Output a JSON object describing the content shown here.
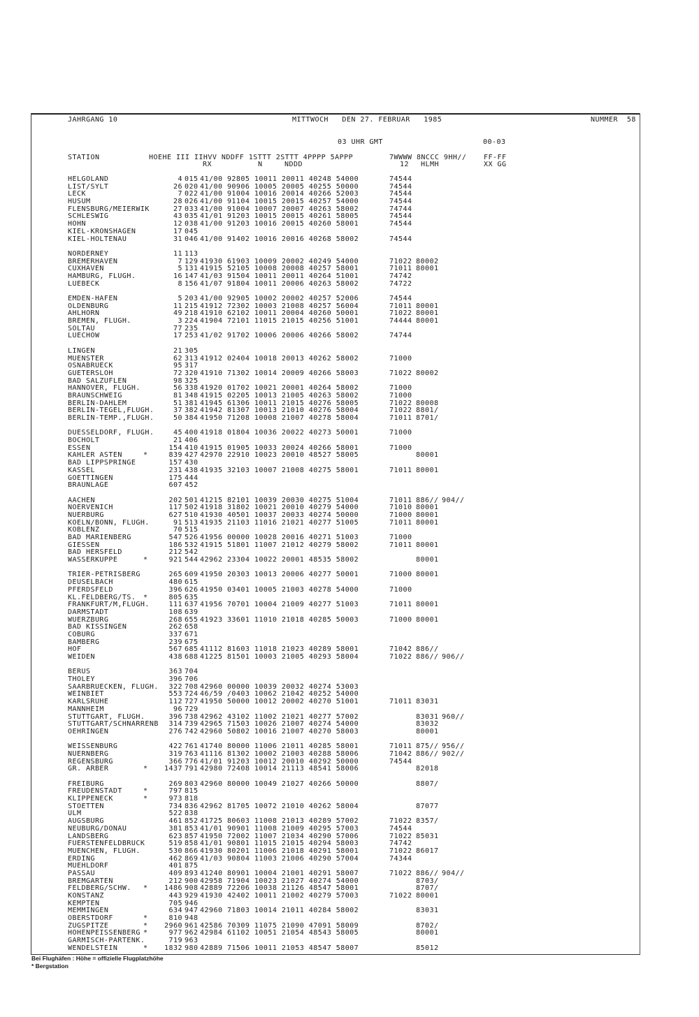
{
  "header": {
    "volume": "JAHRGANG 10",
    "date": "MITTWOCH   DEN 27. FEBRUAR   1985",
    "number": "NUMMER  58",
    "time": "03 UHR GMT",
    "period": "00-03"
  },
  "columns": {
    "line1": "HOEHE III IIHVV NDDFF 1STTT 2STTT 4PPPP 5APPP",
    "line1b": "7WWWW 8NCCC 9HH//",
    "station": "STATION",
    "ff": "FF-FF",
    "rx": "RX",
    "n": "N",
    "nddd": "NDDD",
    "w12": "12",
    "hlmh": "HLMH",
    "xxgg": "XX GG"
  },
  "table": {
    "groups": [
      {
        "rows": [
          [
            "HELGOLAND",
            "",
            "4",
            "015",
            "41/00 92805 10011 20011 40248 54000",
            "74544",
            "",
            ""
          ],
          [
            "LIST/SYLT",
            "",
            "26",
            "020",
            "41/00 90906 10005 20005 40255 50000",
            "74544",
            "",
            ""
          ],
          [
            "LECK",
            "",
            "7",
            "022",
            "41/00 91004 10016 20014 40266 52003",
            "74544",
            "",
            ""
          ],
          [
            "HUSUM",
            "",
            "28",
            "026",
            "41/00 91104 10015 20015 40257 54000",
            "74544",
            "",
            ""
          ],
          [
            "FLENSBURG/MEIERWIK",
            "",
            "27",
            "033",
            "41/00 91004 10007 20007 40263 58002",
            "74744",
            "",
            ""
          ],
          [
            "SCHLESWIG",
            "",
            "43",
            "035",
            "41/01 91203 10015 20015 40261 58005",
            "74544",
            "",
            ""
          ],
          [
            "HOHN",
            "",
            "12",
            "038",
            "41/00 91203 10016 20015 40260 58001",
            "74544",
            "",
            ""
          ],
          [
            "KIEL-KRONSHAGEN",
            "",
            "17",
            "045",
            "",
            "",
            "",
            ""
          ],
          [
            "KIEL-HOLTENAU",
            "",
            "31",
            "046",
            "41/00 91402 10016 20016 40268 58002",
            "74544",
            "",
            ""
          ]
        ]
      },
      {
        "rows": [
          [
            "NORDERNEY",
            "",
            "11",
            "113",
            "",
            "",
            "",
            ""
          ],
          [
            "BREMERHAVEN",
            "",
            "7",
            "129",
            "41930 61903 10009 20002 40249 54000",
            "71022",
            "80002",
            ""
          ],
          [
            "CUXHAVEN",
            "",
            "5",
            "131",
            "41915 52105 10008 20008 40257 58001",
            "71011",
            "80001",
            ""
          ],
          [
            "HAMBURG, FLUGH.",
            "",
            "16",
            "147",
            "41/03 91504 10011 20011 40264 51001",
            "74742",
            "",
            ""
          ],
          [
            "LUEBECK",
            "",
            "8",
            "156",
            "41/07 91804 10011 20006 40263 58002",
            "74722",
            "",
            ""
          ]
        ]
      },
      {
        "rows": [
          [
            "EMDEN-HAFEN",
            "",
            "5",
            "203",
            "41/00 92905 10002 20002 40257 52006",
            "74544",
            "",
            ""
          ],
          [
            "OLDENBURG",
            "",
            "11",
            "215",
            "41912 72302 10003 21008 40257 56004",
            "71011",
            "80001",
            ""
          ],
          [
            "AHLHORN",
            "",
            "49",
            "218",
            "41910 62102 10011 20004 40260 50001",
            "71022",
            "80001",
            ""
          ],
          [
            "BREMEN, FLUGH.",
            "",
            "3",
            "224",
            "41904 72101 11015 21015 40256 51001",
            "74444",
            "80001",
            ""
          ],
          [
            "SOLTAU",
            "",
            "77",
            "235",
            "",
            "",
            "",
            ""
          ],
          [
            "LUECHOW",
            "",
            "17",
            "253",
            "41/02 91702 10006 20006 40266 58002",
            "74744",
            "",
            ""
          ]
        ]
      },
      {
        "rows": [
          [
            "LINGEN",
            "",
            "21",
            "305",
            "",
            "",
            "",
            ""
          ],
          [
            "MUENSTER",
            "",
            "62",
            "313",
            "41912 02404 10018 20013 40262 58002",
            "71000",
            "",
            ""
          ],
          [
            "OSNABRUECK",
            "",
            "95",
            "317",
            "",
            "",
            "",
            ""
          ],
          [
            "GUETERSLOH",
            "",
            "72",
            "320",
            "41910 71302 10014 20009 40266 58003",
            "71022",
            "80002",
            ""
          ],
          [
            "BAD SALZUFLEN",
            "",
            "98",
            "325",
            "",
            "",
            "",
            ""
          ],
          [
            "HANNOVER, FLUGH.",
            "",
            "56",
            "338",
            "41920 01702 10021 20001 40264 58002",
            "71000",
            "",
            ""
          ],
          [
            "BRAUNSCHWEIG",
            "",
            "81",
            "348",
            "41915 02205 10013 21005 40263 58002",
            "71000",
            "",
            ""
          ],
          [
            "BERLIN-DAHLEM",
            "",
            "51",
            "381",
            "41945 61306 10011 21015 40276 58005",
            "71022",
            "80008",
            ""
          ],
          [
            "BERLIN-TEGEL,FLUGH.",
            "",
            "37",
            "382",
            "41942 81307 10013 21010 40276 58004",
            "71022",
            "8801/",
            ""
          ],
          [
            "BERLIN-TEMP.,FLUGH.",
            "",
            "50",
            "384",
            "41950 71208 10008 21007 40278 58004",
            "71011",
            "8701/",
            ""
          ]
        ]
      },
      {
        "rows": [
          [
            "DUESSELDORF, FLUGH.",
            "",
            "45",
            "400",
            "41918 01804 10036 20022 40273 50001",
            "71000",
            "",
            ""
          ],
          [
            "BOCHOLT",
            "",
            "21",
            "406",
            "",
            "",
            "",
            ""
          ],
          [
            "ESSEN",
            "",
            "154",
            "410",
            "41915 01905 10033 20024 40266 58001",
            "71000",
            "",
            ""
          ],
          [
            "KAHLER ASTEN",
            "*",
            "839",
            "427",
            "42970 22910 10023 20010 48527 58005",
            "",
            "80001",
            ""
          ],
          [
            "BAD LIPPSPRINGE",
            "",
            "157",
            "430",
            "",
            "",
            "",
            ""
          ],
          [
            "KASSEL",
            "",
            "231",
            "438",
            "41935 32103 10007 21008 40275 58001",
            "71011",
            "80001",
            ""
          ],
          [
            "GOETTINGEN",
            "",
            "175",
            "444",
            "",
            "",
            "",
            ""
          ],
          [
            "BRAUNLAGE",
            "",
            "607",
            "452",
            "",
            "",
            "",
            ""
          ]
        ]
      },
      {
        "rows": [
          [
            "AACHEN",
            "",
            "202",
            "501",
            "41215 82101 10039 20030 40275 51004",
            "71011",
            "886//",
            "904//"
          ],
          [
            "NOERVENICH",
            "",
            "117",
            "502",
            "41918 31802 10021 20010 40279 54000",
            "71010",
            "80001",
            ""
          ],
          [
            "NUERBURG",
            "",
            "627",
            "510",
            "41930 40501 10037 20033 40274 50000",
            "71000",
            "80001",
            ""
          ],
          [
            "KOELN/BONN, FLUGH.",
            "",
            "91",
            "513",
            "41935 21103 11016 21021 40277 51005",
            "71011",
            "80001",
            ""
          ],
          [
            "KOBLENZ",
            "",
            "70",
            "515",
            "",
            "",
            "",
            ""
          ],
          [
            "BAD MARIENBERG",
            "",
            "547",
            "526",
            "41956 00000 10028 20016 40271 51003",
            "71000",
            "",
            ""
          ],
          [
            "GIESSEN",
            "",
            "186",
            "532",
            "41915 51801 11007 21012 40279 58002",
            "71011",
            "80001",
            ""
          ],
          [
            "BAD HERSFELD",
            "",
            "212",
            "542",
            "",
            "",
            "",
            ""
          ],
          [
            "WASSERKUPPE",
            "*",
            "921",
            "544",
            "42962 23304 10022 20001 48535 58002",
            "",
            "80001",
            ""
          ]
        ]
      },
      {
        "rows": [
          [
            "TRIER-PETRISBERG",
            "",
            "265",
            "609",
            "41950 20303 10013 20006 40277 50001",
            "71000",
            "80001",
            ""
          ],
          [
            "DEUSELBACH",
            "",
            "480",
            "615",
            "",
            "",
            "",
            ""
          ],
          [
            "PFERDSFELD",
            "",
            "396",
            "626",
            "41950 03401 10005 21003 40278 54000",
            "71000",
            "",
            ""
          ],
          [
            "KL.FELDBERG/TS.",
            "*",
            "805",
            "635",
            "",
            "",
            "",
            ""
          ],
          [
            "FRANKFURT/M,FLUGH.",
            "",
            "111",
            "637",
            "41956 70701 10004 21009 40277 51003",
            "71011",
            "80001",
            ""
          ],
          [
            "DARMSTADT",
            "",
            "108",
            "639",
            "",
            "",
            "",
            ""
          ],
          [
            "WUERZBURG",
            "",
            "268",
            "655",
            "41923 33601 11010 21018 40285 50003",
            "71000",
            "80001",
            ""
          ],
          [
            "BAD KISSINGEN",
            "",
            "262",
            "658",
            "",
            "",
            "",
            ""
          ],
          [
            "COBURG",
            "",
            "337",
            "671",
            "",
            "",
            "",
            ""
          ],
          [
            "BAMBERG",
            "",
            "239",
            "675",
            "",
            "",
            "",
            ""
          ],
          [
            "HOF",
            "",
            "567",
            "685",
            "41112 81603 11018 21023 40289 58001",
            "71042",
            "886//",
            ""
          ],
          [
            "WEIDEN",
            "",
            "438",
            "688",
            "41225 81501 10003 21005 40293 58004",
            "71022",
            "886//",
            "906//"
          ]
        ]
      },
      {
        "rows": [
          [
            "BERUS",
            "",
            "363",
            "704",
            "",
            "",
            "",
            ""
          ],
          [
            "THOLEY",
            "",
            "396",
            "706",
            "",
            "",
            "",
            ""
          ],
          [
            "SAARBRUECKEN, FLUGH.",
            "",
            "322",
            "708",
            "42960 00000 10039 20032 40274 53003",
            "",
            "",
            ""
          ],
          [
            "WEINBIET",
            "",
            "553",
            "724",
            "46/59 /0403 10062 21042 40252 54000",
            "",
            "",
            ""
          ],
          [
            "KARLSRUHE",
            "",
            "112",
            "727",
            "41950 50000 10012 20002 40270 51001",
            "71011",
            "83031",
            ""
          ],
          [
            "MANNHEIM",
            "",
            "96",
            "729",
            "",
            "",
            "",
            ""
          ],
          [
            "STUTTGART, FLUGH.",
            "",
            "396",
            "738",
            "42962 43102 11002 21021 40277 57002",
            "",
            "83031",
            "960//"
          ],
          [
            "STUTTGART/SCHNARRENB",
            "",
            "314",
            "739",
            "42965 71503 10026 21007 40274 54000",
            "",
            "83032",
            ""
          ],
          [
            "OEHRINGEN",
            "",
            "276",
            "742",
            "42960 50802 10016 21007 40270 58003",
            "",
            "80001",
            ""
          ]
        ]
      },
      {
        "rows": [
          [
            "WEISSENBURG",
            "",
            "422",
            "761",
            "41740 80000 11006 21011 40285 58001",
            "71011",
            "875//",
            "956//"
          ],
          [
            "NUERNBERG",
            "",
            "319",
            "763",
            "41116 81302 10002 21003 40288 58006",
            "71042",
            "886//",
            "902//"
          ],
          [
            "REGENSBURG",
            "",
            "366",
            "776",
            "41/01 91203 10012 20010 40292 50000",
            "74544",
            "",
            ""
          ],
          [
            "GR. ARBER",
            "*",
            "1437",
            "791",
            "42980 72408 10014 21113 48541 58006",
            "",
            "82018",
            ""
          ]
        ]
      },
      {
        "rows": [
          [
            "FREIBURG",
            "",
            "269",
            "803",
            "42960 80000 10049 21027 40266 50000",
            "",
            "8807/",
            ""
          ],
          [
            "FREUDENSTADT",
            "*",
            "797",
            "815",
            "",
            "",
            "",
            ""
          ],
          [
            "KLIPPENECK",
            "*",
            "973",
            "818",
            "",
            "",
            "",
            ""
          ],
          [
            "STOETTEN",
            "",
            "734",
            "836",
            "42962 81705 10072 21010 40262 58004",
            "",
            "87077",
            ""
          ],
          [
            "ULM",
            "",
            "522",
            "838",
            "",
            "",
            "",
            ""
          ],
          [
            "AUGSBURG",
            "",
            "461",
            "852",
            "41725 80603 11008 21013 40289 57002",
            "71022",
            "8357/",
            ""
          ],
          [
            "NEUBURG/DONAU",
            "",
            "381",
            "853",
            "41/01 90901 11008 21009 40295 57003",
            "74544",
            "",
            ""
          ],
          [
            "LANDSBERG",
            "",
            "623",
            "857",
            "41950 72002 11007 21034 40290 57006",
            "71022",
            "85031",
            ""
          ],
          [
            "FUERSTENFELDBRUCK",
            "",
            "519",
            "858",
            "41/01 90801 11015 21015 40294 58003",
            "74742",
            "",
            ""
          ],
          [
            "MUENCHEN, FLUGH.",
            "",
            "530",
            "866",
            "41930 80201 11006 21018 40291 58001",
            "71022",
            "86017",
            ""
          ],
          [
            "ERDING",
            "",
            "462",
            "869",
            "41/03 90804 11003 21006 40290 57004",
            "74344",
            "",
            ""
          ],
          [
            "MUEHLDORF",
            "",
            "401",
            "875",
            "",
            "",
            "",
            ""
          ],
          [
            "PASSAU",
            "",
            "409",
            "893",
            "41240 80901 10004 21001 40291 58007",
            "71022",
            "886//",
            "904//"
          ],
          [
            "BREMGARTEN",
            "",
            "212",
            "900",
            "42958 71904 10023 21027 40274 54000",
            "",
            "8703/",
            ""
          ],
          [
            "FELDBERG/SCHW.",
            "*",
            "1486",
            "908",
            "42889 72206 10038 21126 48547 58001",
            "",
            "8707/",
            ""
          ],
          [
            "KONSTANZ",
            "",
            "443",
            "929",
            "41930 42402 10011 21002 40279 57003",
            "71022",
            "80001",
            ""
          ],
          [
            "KEMPTEN",
            "",
            "705",
            "946",
            "",
            "",
            "",
            ""
          ],
          [
            "MEMMINGEN",
            "",
            "634",
            "947",
            "42960 71803 10014 21011 40284 58002",
            "",
            "83031",
            ""
          ],
          [
            "OBERSTDORF",
            "*",
            "810",
            "948",
            "",
            "",
            "",
            ""
          ],
          [
            "ZUGSPITZE",
            "*",
            "2960",
            "961",
            "42586 70309 11075 21090 47091 58009",
            "",
            "8702/",
            ""
          ],
          [
            "HOHENPEISSENBERG",
            "*",
            "977",
            "962",
            "42984 61102 10051 21054 48543 58005",
            "",
            "80001",
            ""
          ],
          [
            "GARMISCH-PARTENK.",
            "",
            "719",
            "963",
            "",
            "",
            "",
            ""
          ],
          [
            "WENDELSTEIN",
            "*",
            "1832",
            "980",
            "42889 71506 10011 21053 48547 58007",
            "",
            "85012",
            ""
          ]
        ]
      }
    ]
  },
  "footer": {
    "note1": "Bei Flughäfen : Höhe = offizielle Flugplatzhöhe",
    "note2": "* Bergstation"
  }
}
